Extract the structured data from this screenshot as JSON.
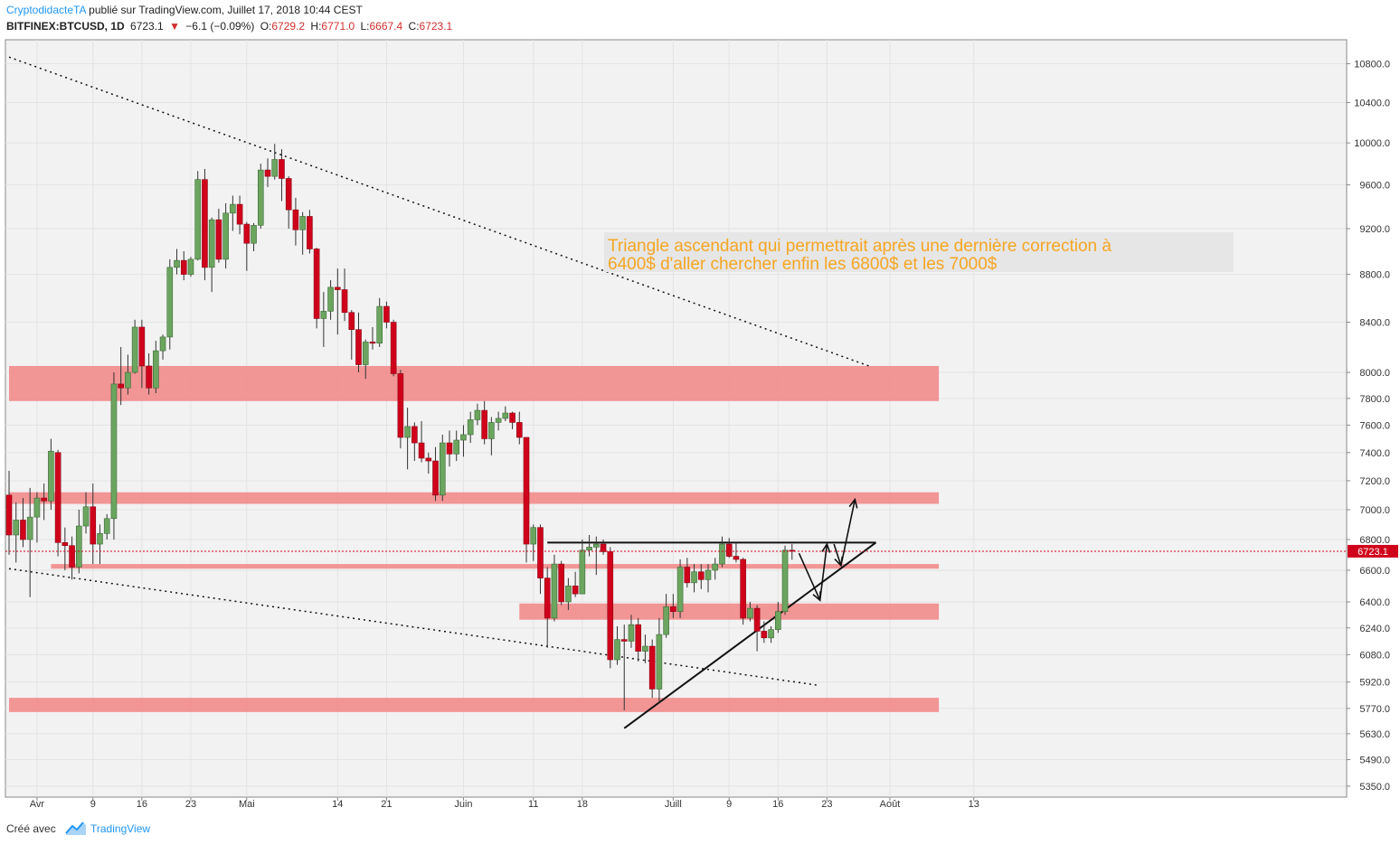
{
  "header": {
    "author": "CryptodidacteTA",
    "published": "publié sur TradingView.com, Juillet 17, 2018 10:44 CEST",
    "symbol": "BITFINEX:BTCUSD, 1D",
    "last": "6723.1",
    "change": "−6.1 (−0.09%)",
    "o_label": "O:",
    "o_value": "6729.2",
    "h_label": "H:",
    "h_value": "6771.0",
    "l_label": "L:",
    "l_value": "6667.4",
    "c_label": "C:",
    "c_value": "6723.1"
  },
  "annotation": {
    "line1": "Triangle ascendant qui permettrait après une dernière correction à",
    "line2": "6400$ d'aller chercher enfin les 6800$ et les 7000$"
  },
  "price_label": "6723.1",
  "footer": {
    "created": "Créé avec",
    "brand": "TradingView"
  },
  "colors": {
    "up": "#6ba55f",
    "down": "#d0021b",
    "zone": "#f28b8b",
    "annotation": "#f5a623",
    "accent": "#2196f3"
  },
  "chart_data": {
    "type": "candlestick",
    "symbol": "BITFINEX:BTCUSD",
    "interval": "1D",
    "scale": "log",
    "grid": true,
    "ylim": [
      5300,
      11000
    ],
    "y_ticks": [
      5350,
      5490,
      5630,
      5770,
      5920,
      6080,
      6240,
      6400,
      6600,
      6800,
      7000,
      7200,
      7400,
      7600,
      7800,
      8000,
      8400,
      8800,
      9200,
      9600,
      10000,
      10400,
      10800
    ],
    "x_ticks": [
      {
        "date": "2018-04-01",
        "label": "Avr"
      },
      {
        "date": "2018-04-09",
        "label": "9"
      },
      {
        "date": "2018-04-16",
        "label": "16"
      },
      {
        "date": "2018-04-23",
        "label": "23"
      },
      {
        "date": "2018-05-01",
        "label": "Mai"
      },
      {
        "date": "2018-05-14",
        "label": "14"
      },
      {
        "date": "2018-05-21",
        "label": "21"
      },
      {
        "date": "2018-06-01",
        "label": "Juin"
      },
      {
        "date": "2018-06-11",
        "label": "11"
      },
      {
        "date": "2018-06-18",
        "label": "18"
      },
      {
        "date": "2018-07-01",
        "label": "Juill"
      },
      {
        "date": "2018-07-09",
        "label": "9"
      },
      {
        "date": "2018-07-16",
        "label": "16"
      },
      {
        "date": "2018-07-23",
        "label": "23"
      },
      {
        "date": "2018-08-01",
        "label": "Août"
      },
      {
        "date": "2018-08-13",
        "label": "13"
      }
    ],
    "x_range": [
      "2018-03-28",
      "2018-08-14"
    ],
    "candles": [
      {
        "d": "2018-03-28",
        "o": 7100,
        "h": 7270,
        "l": 6700,
        "c": 6830
      },
      {
        "d": "2018-03-29",
        "o": 6830,
        "h": 7050,
        "l": 6650,
        "c": 6930
      },
      {
        "d": "2018-03-30",
        "o": 6930,
        "h": 7080,
        "l": 6750,
        "c": 6800
      },
      {
        "d": "2018-03-31",
        "o": 6800,
        "h": 7150,
        "l": 6430,
        "c": 6950
      },
      {
        "d": "2018-04-01",
        "o": 6950,
        "h": 7120,
        "l": 6780,
        "c": 7080
      },
      {
        "d": "2018-04-02",
        "o": 7080,
        "h": 7180,
        "l": 6930,
        "c": 7060
      },
      {
        "d": "2018-04-03",
        "o": 7060,
        "h": 7500,
        "l": 7000,
        "c": 7410
      },
      {
        "d": "2018-04-04",
        "o": 7400,
        "h": 7420,
        "l": 6690,
        "c": 6780
      },
      {
        "d": "2018-04-05",
        "o": 6780,
        "h": 6880,
        "l": 6600,
        "c": 6760
      },
      {
        "d": "2018-04-06",
        "o": 6760,
        "h": 6820,
        "l": 6540,
        "c": 6620
      },
      {
        "d": "2018-04-07",
        "o": 6620,
        "h": 7000,
        "l": 6580,
        "c": 6890
      },
      {
        "d": "2018-04-08",
        "o": 6890,
        "h": 7120,
        "l": 6840,
        "c": 7020
      },
      {
        "d": "2018-04-09",
        "o": 7020,
        "h": 7180,
        "l": 6640,
        "c": 6770
      },
      {
        "d": "2018-04-10",
        "o": 6770,
        "h": 6900,
        "l": 6640,
        "c": 6840
      },
      {
        "d": "2018-04-11",
        "o": 6840,
        "h": 6970,
        "l": 6800,
        "c": 6940
      },
      {
        "d": "2018-04-12",
        "o": 6940,
        "h": 8000,
        "l": 6800,
        "c": 7910
      },
      {
        "d": "2018-04-13",
        "o": 7910,
        "h": 8200,
        "l": 7750,
        "c": 7880
      },
      {
        "d": "2018-04-14",
        "o": 7880,
        "h": 8140,
        "l": 7830,
        "c": 8000
      },
      {
        "d": "2018-04-15",
        "o": 8000,
        "h": 8420,
        "l": 7990,
        "c": 8360
      },
      {
        "d": "2018-04-16",
        "o": 8360,
        "h": 8420,
        "l": 7880,
        "c": 8050
      },
      {
        "d": "2018-04-17",
        "o": 8050,
        "h": 8150,
        "l": 7830,
        "c": 7880
      },
      {
        "d": "2018-04-18",
        "o": 7880,
        "h": 8250,
        "l": 7840,
        "c": 8170
      },
      {
        "d": "2018-04-19",
        "o": 8170,
        "h": 8300,
        "l": 8100,
        "c": 8280
      },
      {
        "d": "2018-04-20",
        "o": 8280,
        "h": 8930,
        "l": 8180,
        "c": 8860
      },
      {
        "d": "2018-04-21",
        "o": 8860,
        "h": 9020,
        "l": 8800,
        "c": 8920
      },
      {
        "d": "2018-04-22",
        "o": 8920,
        "h": 9000,
        "l": 8750,
        "c": 8800
      },
      {
        "d": "2018-04-23",
        "o": 8800,
        "h": 8950,
        "l": 8780,
        "c": 8930
      },
      {
        "d": "2018-04-24",
        "o": 8930,
        "h": 9730,
        "l": 8920,
        "c": 9650
      },
      {
        "d": "2018-04-25",
        "o": 9650,
        "h": 9750,
        "l": 8750,
        "c": 8860
      },
      {
        "d": "2018-04-26",
        "o": 8860,
        "h": 9300,
        "l": 8650,
        "c": 9280
      },
      {
        "d": "2018-04-27",
        "o": 9280,
        "h": 9380,
        "l": 8900,
        "c": 8930
      },
      {
        "d": "2018-04-28",
        "o": 8930,
        "h": 9430,
        "l": 8850,
        "c": 9340
      },
      {
        "d": "2018-04-29",
        "o": 9340,
        "h": 9500,
        "l": 9180,
        "c": 9420
      },
      {
        "d": "2018-04-30",
        "o": 9420,
        "h": 9500,
        "l": 9150,
        "c": 9240
      },
      {
        "d": "2018-05-01",
        "o": 9240,
        "h": 9260,
        "l": 8830,
        "c": 9070
      },
      {
        "d": "2018-05-02",
        "o": 9070,
        "h": 9250,
        "l": 9000,
        "c": 9230
      },
      {
        "d": "2018-05-03",
        "o": 9230,
        "h": 9800,
        "l": 9200,
        "c": 9740
      },
      {
        "d": "2018-05-04",
        "o": 9740,
        "h": 9850,
        "l": 9580,
        "c": 9680
      },
      {
        "d": "2018-05-05",
        "o": 9680,
        "h": 9990,
        "l": 9650,
        "c": 9840
      },
      {
        "d": "2018-05-06",
        "o": 9840,
        "h": 9940,
        "l": 9450,
        "c": 9660
      },
      {
        "d": "2018-05-07",
        "o": 9660,
        "h": 9680,
        "l": 9200,
        "c": 9370
      },
      {
        "d": "2018-05-08",
        "o": 9370,
        "h": 9480,
        "l": 9050,
        "c": 9190
      },
      {
        "d": "2018-05-09",
        "o": 9190,
        "h": 9350,
        "l": 8970,
        "c": 9310
      },
      {
        "d": "2018-05-10",
        "o": 9310,
        "h": 9370,
        "l": 8980,
        "c": 9020
      },
      {
        "d": "2018-05-11",
        "o": 9020,
        "h": 9030,
        "l": 8350,
        "c": 8430
      },
      {
        "d": "2018-05-12",
        "o": 8430,
        "h": 8650,
        "l": 8200,
        "c": 8490
      },
      {
        "d": "2018-05-13",
        "o": 8490,
        "h": 8750,
        "l": 8420,
        "c": 8690
      },
      {
        "d": "2018-05-14",
        "o": 8690,
        "h": 8850,
        "l": 8300,
        "c": 8670
      },
      {
        "d": "2018-05-15",
        "o": 8670,
        "h": 8850,
        "l": 8410,
        "c": 8480
      },
      {
        "d": "2018-05-16",
        "o": 8480,
        "h": 8500,
        "l": 8100,
        "c": 8340
      },
      {
        "d": "2018-05-17",
        "o": 8340,
        "h": 8480,
        "l": 8000,
        "c": 8060
      },
      {
        "d": "2018-05-18",
        "o": 8060,
        "h": 8260,
        "l": 7950,
        "c": 8240
      },
      {
        "d": "2018-05-19",
        "o": 8240,
        "h": 8360,
        "l": 8180,
        "c": 8230
      },
      {
        "d": "2018-05-20",
        "o": 8230,
        "h": 8600,
        "l": 8200,
        "c": 8530
      },
      {
        "d": "2018-05-21",
        "o": 8530,
        "h": 8570,
        "l": 8350,
        "c": 8400
      },
      {
        "d": "2018-05-22",
        "o": 8400,
        "h": 8420,
        "l": 7970,
        "c": 7990
      },
      {
        "d": "2018-05-23",
        "o": 7990,
        "h": 8020,
        "l": 7430,
        "c": 7510
      },
      {
        "d": "2018-05-24",
        "o": 7510,
        "h": 7730,
        "l": 7280,
        "c": 7590
      },
      {
        "d": "2018-05-25",
        "o": 7590,
        "h": 7620,
        "l": 7340,
        "c": 7470
      },
      {
        "d": "2018-05-26",
        "o": 7470,
        "h": 7630,
        "l": 7330,
        "c": 7360
      },
      {
        "d": "2018-05-27",
        "o": 7360,
        "h": 7400,
        "l": 7250,
        "c": 7340
      },
      {
        "d": "2018-05-28",
        "o": 7340,
        "h": 7440,
        "l": 7060,
        "c": 7100
      },
      {
        "d": "2018-05-29",
        "o": 7100,
        "h": 7530,
        "l": 7060,
        "c": 7470
      },
      {
        "d": "2018-05-30",
        "o": 7470,
        "h": 7560,
        "l": 7300,
        "c": 7390
      },
      {
        "d": "2018-05-31",
        "o": 7390,
        "h": 7560,
        "l": 7340,
        "c": 7490
      },
      {
        "d": "2018-06-01",
        "o": 7490,
        "h": 7600,
        "l": 7370,
        "c": 7530
      },
      {
        "d": "2018-06-02",
        "o": 7530,
        "h": 7700,
        "l": 7470,
        "c": 7640
      },
      {
        "d": "2018-06-03",
        "o": 7640,
        "h": 7760,
        "l": 7600,
        "c": 7710
      },
      {
        "d": "2018-06-04",
        "o": 7710,
        "h": 7780,
        "l": 7460,
        "c": 7500
      },
      {
        "d": "2018-06-05",
        "o": 7500,
        "h": 7660,
        "l": 7380,
        "c": 7620
      },
      {
        "d": "2018-06-06",
        "o": 7620,
        "h": 7700,
        "l": 7560,
        "c": 7650
      },
      {
        "d": "2018-06-07",
        "o": 7650,
        "h": 7740,
        "l": 7630,
        "c": 7690
      },
      {
        "d": "2018-06-08",
        "o": 7690,
        "h": 7700,
        "l": 7570,
        "c": 7620
      },
      {
        "d": "2018-06-09",
        "o": 7620,
        "h": 7700,
        "l": 7460,
        "c": 7510
      },
      {
        "d": "2018-06-10",
        "o": 7510,
        "h": 7510,
        "l": 6650,
        "c": 6770
      },
      {
        "d": "2018-06-11",
        "o": 6770,
        "h": 6900,
        "l": 6660,
        "c": 6880
      },
      {
        "d": "2018-06-12",
        "o": 6880,
        "h": 6900,
        "l": 6450,
        "c": 6550
      },
      {
        "d": "2018-06-13",
        "o": 6550,
        "h": 6620,
        "l": 6120,
        "c": 6300
      },
      {
        "d": "2018-06-14",
        "o": 6300,
        "h": 6700,
        "l": 6280,
        "c": 6640
      },
      {
        "d": "2018-06-15",
        "o": 6640,
        "h": 6660,
        "l": 6380,
        "c": 6400
      },
      {
        "d": "2018-06-16",
        "o": 6400,
        "h": 6550,
        "l": 6350,
        "c": 6500
      },
      {
        "d": "2018-06-17",
        "o": 6500,
        "h": 6590,
        "l": 6430,
        "c": 6450
      },
      {
        "d": "2018-06-18",
        "o": 6450,
        "h": 6800,
        "l": 6450,
        "c": 6730
      },
      {
        "d": "2018-06-19",
        "o": 6730,
        "h": 6830,
        "l": 6690,
        "c": 6750
      },
      {
        "d": "2018-06-20",
        "o": 6750,
        "h": 6820,
        "l": 6570,
        "c": 6770
      },
      {
        "d": "2018-06-21",
        "o": 6770,
        "h": 6800,
        "l": 6700,
        "c": 6720
      },
      {
        "d": "2018-06-22",
        "o": 6720,
        "h": 6750,
        "l": 6000,
        "c": 6050
      },
      {
        "d": "2018-06-23",
        "o": 6050,
        "h": 6250,
        "l": 6020,
        "c": 6170
      },
      {
        "d": "2018-06-24",
        "o": 6170,
        "h": 6260,
        "l": 5760,
        "c": 6160
      },
      {
        "d": "2018-06-25",
        "o": 6160,
        "h": 6320,
        "l": 6120,
        "c": 6260
      },
      {
        "d": "2018-06-26",
        "o": 6260,
        "h": 6300,
        "l": 6040,
        "c": 6100
      },
      {
        "d": "2018-06-27",
        "o": 6100,
        "h": 6200,
        "l": 6030,
        "c": 6130
      },
      {
        "d": "2018-06-28",
        "o": 6130,
        "h": 6170,
        "l": 5830,
        "c": 5880
      },
      {
        "d": "2018-06-29",
        "o": 5880,
        "h": 6300,
        "l": 5800,
        "c": 6200
      },
      {
        "d": "2018-06-30",
        "o": 6200,
        "h": 6450,
        "l": 6180,
        "c": 6370
      },
      {
        "d": "2018-07-01",
        "o": 6370,
        "h": 6450,
        "l": 6300,
        "c": 6340
      },
      {
        "d": "2018-07-02",
        "o": 6340,
        "h": 6670,
        "l": 6300,
        "c": 6620
      },
      {
        "d": "2018-07-03",
        "o": 6620,
        "h": 6680,
        "l": 6490,
        "c": 6520
      },
      {
        "d": "2018-07-04",
        "o": 6520,
        "h": 6640,
        "l": 6460,
        "c": 6590
      },
      {
        "d": "2018-07-05",
        "o": 6590,
        "h": 6640,
        "l": 6480,
        "c": 6540
      },
      {
        "d": "2018-07-06",
        "o": 6540,
        "h": 6640,
        "l": 6460,
        "c": 6600
      },
      {
        "d": "2018-07-07",
        "o": 6600,
        "h": 6680,
        "l": 6540,
        "c": 6640
      },
      {
        "d": "2018-07-08",
        "o": 6640,
        "h": 6820,
        "l": 6620,
        "c": 6770
      },
      {
        "d": "2018-07-09",
        "o": 6770,
        "h": 6810,
        "l": 6680,
        "c": 6690
      },
      {
        "d": "2018-07-10",
        "o": 6690,
        "h": 6780,
        "l": 6650,
        "c": 6670
      },
      {
        "d": "2018-07-11",
        "o": 6670,
        "h": 6680,
        "l": 6260,
        "c": 6300
      },
      {
        "d": "2018-07-12",
        "o": 6300,
        "h": 6400,
        "l": 6280,
        "c": 6360
      },
      {
        "d": "2018-07-13",
        "o": 6360,
        "h": 6380,
        "l": 6100,
        "c": 6220
      },
      {
        "d": "2018-07-14",
        "o": 6220,
        "h": 6280,
        "l": 6150,
        "c": 6180
      },
      {
        "d": "2018-07-15",
        "o": 6180,
        "h": 6250,
        "l": 6150,
        "c": 6230
      },
      {
        "d": "2018-07-16",
        "o": 6230,
        "h": 6400,
        "l": 6210,
        "c": 6340
      },
      {
        "d": "2018-07-17",
        "o": 6340,
        "h": 6760,
        "l": 6320,
        "c": 6730
      },
      {
        "d": "2018-07-18",
        "o": 6729.2,
        "h": 6771.0,
        "l": 6667.4,
        "c": 6723.1
      }
    ],
    "zones": [
      {
        "from": 7780,
        "to": 8050,
        "start": "2018-03-28",
        "end": "2018-08-08"
      },
      {
        "from": 7040,
        "to": 7120,
        "start": "2018-03-28",
        "end": "2018-08-08"
      },
      {
        "from": 6610,
        "to": 6640,
        "start": "2018-04-03",
        "end": "2018-08-08"
      },
      {
        "from": 6290,
        "to": 6390,
        "start": "2018-06-09",
        "end": "2018-08-08"
      },
      {
        "from": 5750,
        "to": 5830,
        "start": "2018-03-28",
        "end": "2018-08-08"
      }
    ],
    "trendlines": [
      {
        "style": "dotted",
        "from": [
          "2018-03-28",
          10870
        ],
        "to": [
          "2018-07-29",
          8050
        ]
      },
      {
        "style": "dotted",
        "from": [
          "2018-03-28",
          6610
        ],
        "to": [
          "2018-07-22",
          5900
        ]
      },
      {
        "style": "solid",
        "from": [
          "2018-06-13",
          6780
        ],
        "to": [
          "2018-07-30",
          6780
        ]
      },
      {
        "style": "solid",
        "from": [
          "2018-06-24",
          5660
        ],
        "to": [
          "2018-07-30",
          6780
        ]
      }
    ],
    "arrows": [
      {
        "from": [
          "2018-07-19",
          6710
        ],
        "to": [
          "2018-07-22",
          6410
        ]
      },
      {
        "from": [
          "2018-07-22",
          6410
        ],
        "to": [
          "2018-07-23",
          6770
        ]
      },
      {
        "from": [
          "2018-07-24",
          6770
        ],
        "to": [
          "2018-07-25",
          6630
        ]
      },
      {
        "from": [
          "2018-07-25",
          6630
        ],
        "to": [
          "2018-07-27",
          7070
        ]
      }
    ],
    "last_price": 6723.1
  }
}
